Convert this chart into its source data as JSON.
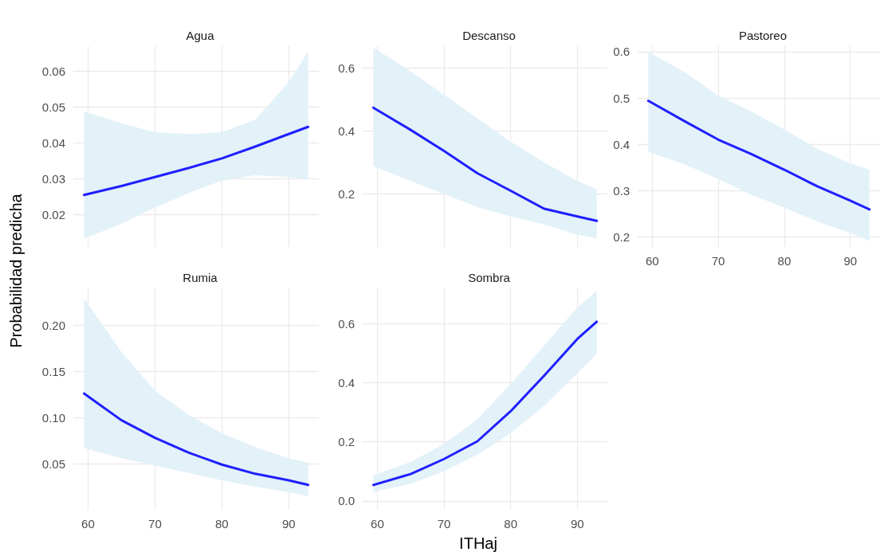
{
  "chart_data": [
    {
      "type": "line",
      "title": "Agua",
      "x": [
        59.4,
        65,
        70,
        75,
        80,
        85,
        90,
        92.9
      ],
      "xlim": [
        57.8,
        94.5
      ],
      "xticks": [
        60,
        70,
        80,
        90
      ],
      "ylim": [
        0.011,
        0.067
      ],
      "yticks": [
        0.02,
        0.03,
        0.04,
        0.05,
        0.06
      ],
      "grid": true,
      "tick_labels": "y",
      "series": [
        {
          "color": "#1f1fff",
          "values": [
            0.0255,
            0.028,
            0.0305,
            0.033,
            0.0357,
            0.039,
            0.0425,
            0.0445
          ],
          "lower": [
            0.0133,
            0.0175,
            0.022,
            0.026,
            0.0295,
            0.031,
            0.0305,
            0.0298
          ],
          "upper": [
            0.0488,
            0.0455,
            0.043,
            0.0425,
            0.043,
            0.0465,
            0.057,
            0.0655
          ]
        }
      ]
    },
    {
      "type": "line",
      "title": "Descanso",
      "x": [
        59.4,
        65,
        70,
        75,
        80,
        85,
        90,
        92.9
      ],
      "xlim": [
        57.8,
        94.5
      ],
      "xticks": [
        60,
        70,
        80,
        90
      ],
      "ylim": [
        0.03,
        0.67
      ],
      "yticks": [
        0.2,
        0.4,
        0.6
      ],
      "grid": true,
      "tick_labels": "y",
      "series": [
        {
          "color": "#1f1fff",
          "values": [
            0.474,
            0.403,
            0.336,
            0.265,
            0.209,
            0.152,
            0.127,
            0.113
          ],
          "lower": [
            0.287,
            0.24,
            0.199,
            0.157,
            0.127,
            0.102,
            0.069,
            0.057
          ],
          "upper": [
            0.665,
            0.59,
            0.515,
            0.44,
            0.365,
            0.3,
            0.24,
            0.214
          ]
        }
      ]
    },
    {
      "type": "line",
      "title": "Pastoreo",
      "x": [
        59.4,
        65,
        70,
        75,
        80,
        85,
        90,
        92.9
      ],
      "xlim": [
        57.8,
        94.5
      ],
      "xticks": [
        60,
        70,
        80,
        90
      ],
      "ylim": [
        0.178,
        0.612
      ],
      "yticks": [
        0.2,
        0.3,
        0.4,
        0.5,
        0.6
      ],
      "grid": true,
      "series": [
        {
          "color": "#1f1fff",
          "values": [
            0.494,
            0.449,
            0.41,
            0.379,
            0.345,
            0.309,
            0.278,
            0.259
          ],
          "lower": [
            0.384,
            0.356,
            0.325,
            0.291,
            0.263,
            0.233,
            0.208,
            0.191
          ],
          "upper": [
            0.6,
            0.555,
            0.505,
            0.471,
            0.432,
            0.39,
            0.359,
            0.345
          ]
        }
      ]
    },
    {
      "type": "line",
      "title": "Rumia",
      "ylabel": "Probabilidad predicha",
      "x": [
        59.4,
        65,
        70,
        75,
        80,
        85,
        90,
        92.9
      ],
      "xlim": [
        57.8,
        94.5
      ],
      "xticks": [
        60,
        70,
        80,
        90
      ],
      "ylim": [
        0.0,
        0.24
      ],
      "yticks": [
        0.05,
        {
          "value": 0.1,
          "label": "0.10"
        },
        0.15,
        {
          "value": 0.2,
          "label": "0.20"
        }
      ],
      "grid": true,
      "series": [
        {
          "color": "#1f1fff",
          "values": [
            0.126,
            0.097,
            0.078,
            0.062,
            0.049,
            0.039,
            0.032,
            0.027
          ],
          "lower": [
            0.067,
            0.056,
            0.048,
            0.04,
            0.032,
            0.025,
            0.019,
            0.015
          ],
          "upper": [
            0.229,
            0.171,
            0.129,
            0.103,
            0.083,
            0.068,
            0.056,
            0.051
          ]
        }
      ]
    },
    {
      "type": "line",
      "title": "Sombra",
      "xlabel": "ITHaj",
      "x": [
        59.4,
        65,
        70,
        75,
        80,
        85,
        90,
        92.9
      ],
      "xlim": [
        57.8,
        94.5
      ],
      "xticks": [
        60,
        70,
        80,
        90
      ],
      "ylim": [
        -0.03,
        0.72
      ],
      "yticks": [
        {
          "value": 0,
          "label": "0.0"
        },
        0.2,
        0.4,
        0.6
      ],
      "grid": true,
      "series": [
        {
          "color": "#1f1fff",
          "values": [
            0.054,
            0.091,
            0.142,
            0.202,
            0.304,
            0.424,
            0.549,
            0.607
          ],
          "lower": [
            0.031,
            0.058,
            0.1,
            0.156,
            0.23,
            0.322,
            0.433,
            0.498
          ],
          "upper": [
            0.086,
            0.132,
            0.193,
            0.276,
            0.396,
            0.526,
            0.656,
            0.711
          ]
        }
      ]
    }
  ]
}
